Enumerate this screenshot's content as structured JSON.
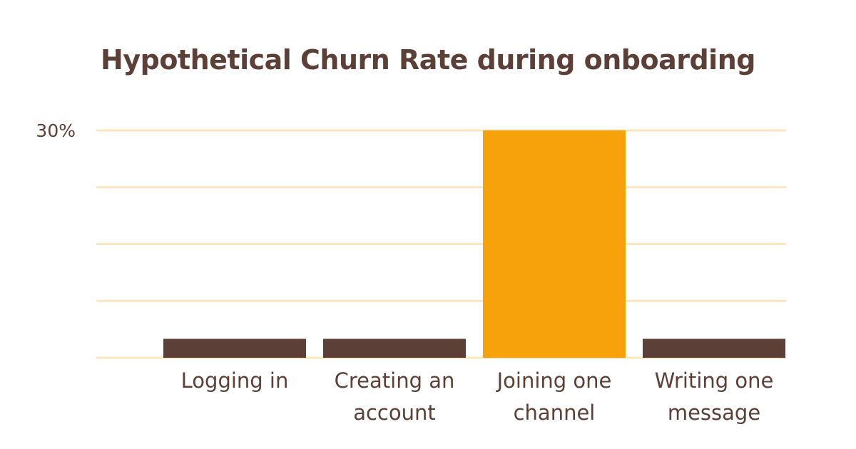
{
  "chart_data": {
    "type": "bar",
    "title": "Hypothetical Churn Rate during onboarding",
    "categories": [
      "Logging in",
      "Creating an account",
      "Joining one channel",
      "Writing one message"
    ],
    "category_label_lines": [
      [
        "Logging in"
      ],
      [
        "Creating an",
        "account"
      ],
      [
        "Joining one",
        "channel"
      ],
      [
        "Writing one",
        "message"
      ]
    ],
    "values": [
      2.5,
      2.5,
      30,
      2.5
    ],
    "ylim": [
      0,
      30
    ],
    "y_ticks": [
      0,
      7.5,
      15,
      22.5,
      30
    ],
    "y_tick_labels": [
      {
        "value": 30,
        "label": "30%"
      }
    ],
    "highlight_index": 2,
    "grid": true,
    "xlabel": "",
    "ylabel": "",
    "colors": {
      "bar": "#5c4038",
      "highlight": "#f7a20b",
      "grid": "#fbe6bd",
      "text": "#5c3f36"
    }
  }
}
